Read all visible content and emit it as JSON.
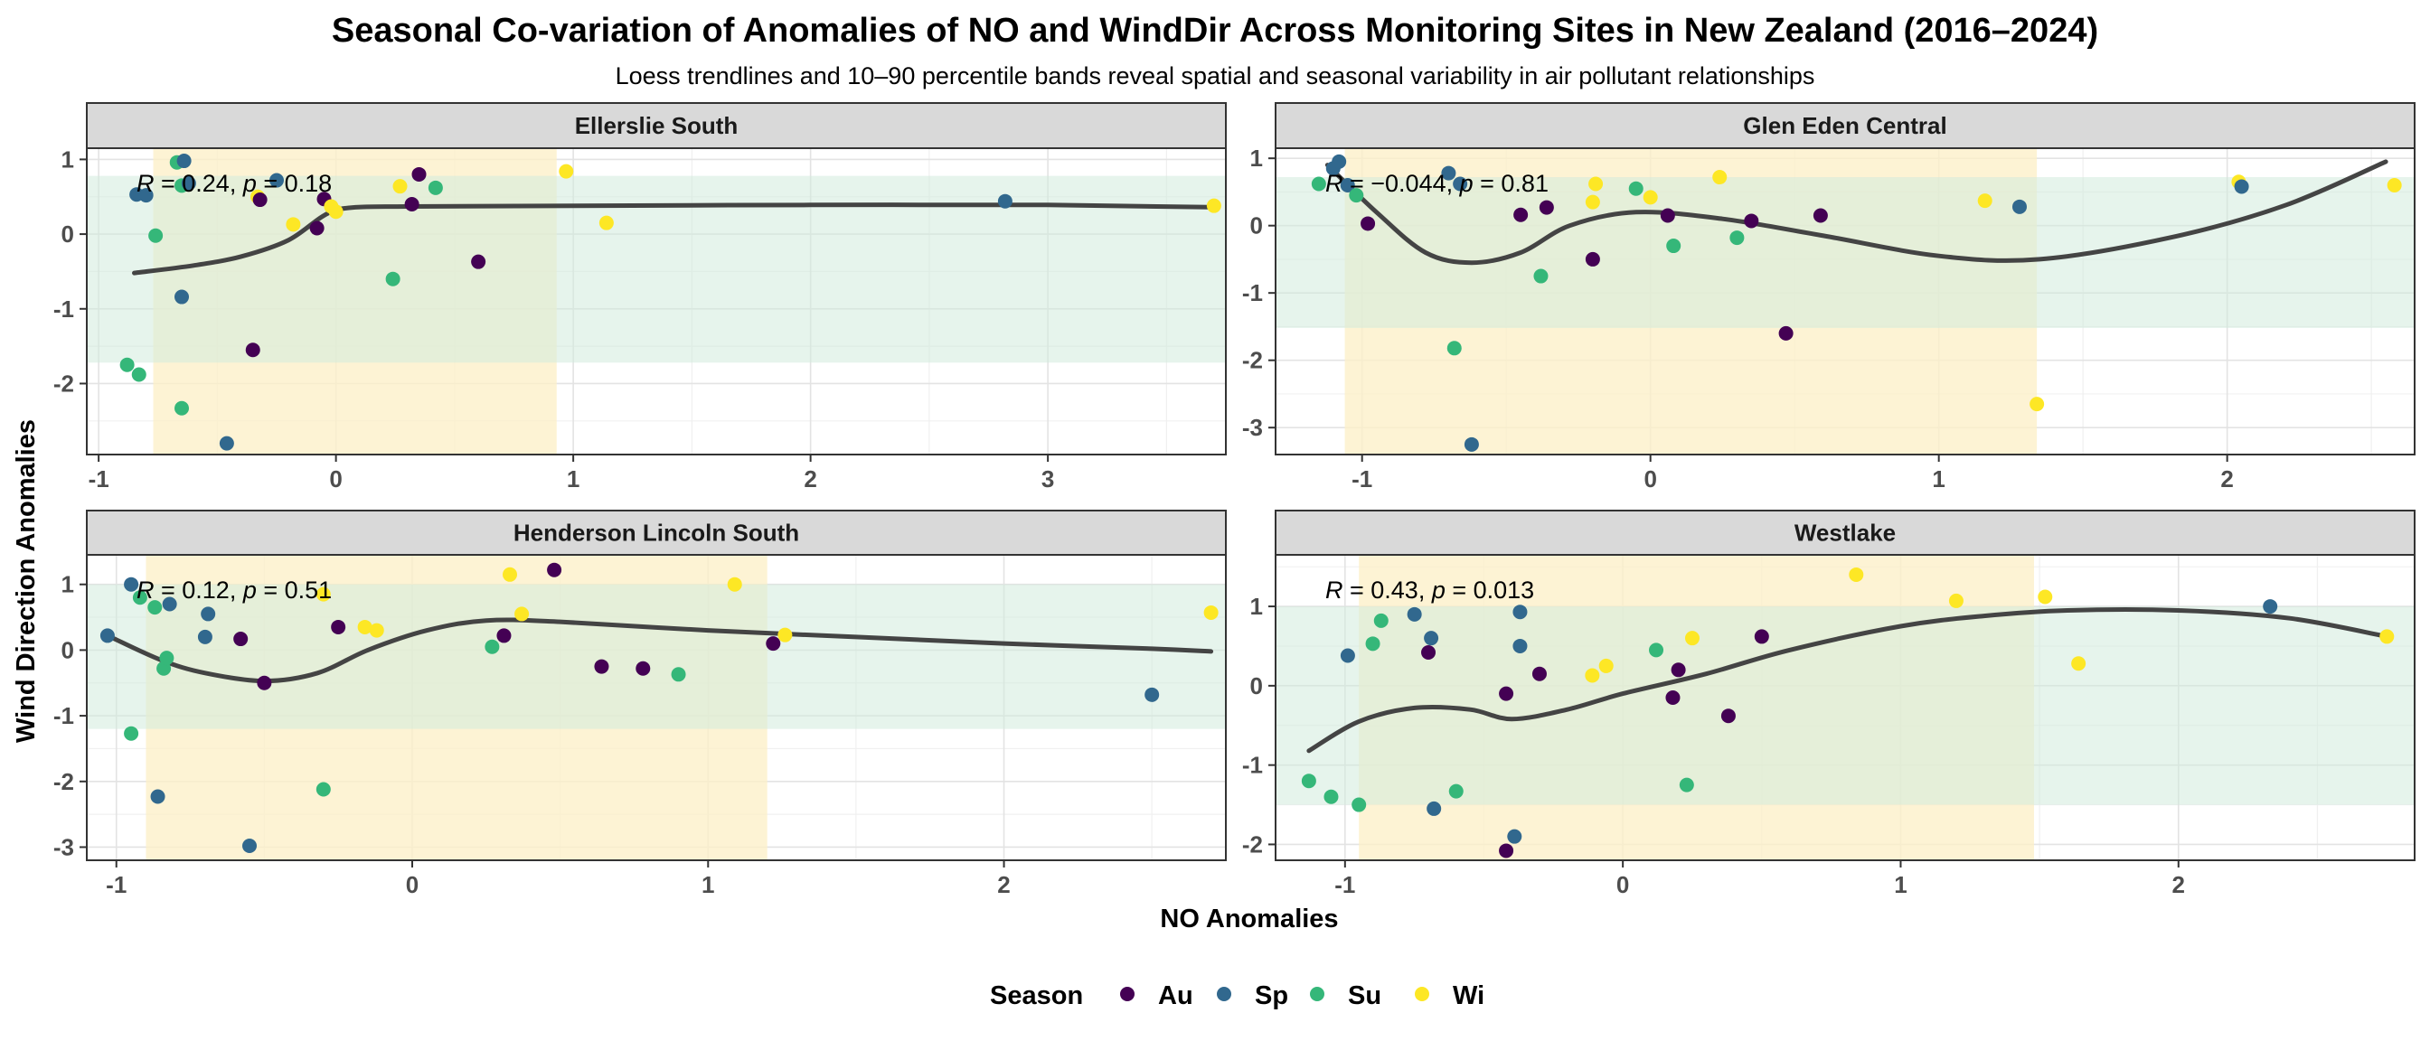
{
  "chart_data": {
    "type": "scatter",
    "title": "Seasonal Co-variation of Anomalies of NO and WindDir Across Monitoring Sites in New Zealand (2016–2024)",
    "subtitle": "Loess trendlines and 10–90 percentile bands reveal spatial and seasonal variability in air pollutant relationships",
    "xlabel": "NO Anomalies",
    "ylabel": "Wind Direction Anomalies",
    "legend": {
      "title": "Season",
      "position": "bottom",
      "entries": [
        {
          "key": "Au",
          "label": "Au",
          "color": "#440154"
        },
        {
          "key": "Sp",
          "label": "Sp",
          "color": "#31688e"
        },
        {
          "key": "Su",
          "label": "Su",
          "color": "#35b779"
        },
        {
          "key": "Wi",
          "label": "Wi",
          "color": "#fde725"
        }
      ]
    },
    "band_colors": {
      "x_band": "#fdf0c8",
      "y_band": "#d2ebdc",
      "overlap": "#e8e9c8"
    },
    "trend_color": "#444444",
    "grid": true,
    "panels": [
      {
        "name": "Ellerslie South",
        "annotation": {
          "r_label": "R",
          "r": "0.24",
          "p_label": "p",
          "p": "0.18"
        },
        "xlim": [
          -1.05,
          3.75
        ],
        "ylim": [
          -2.95,
          1.15
        ],
        "xticks": [
          -1,
          0,
          1,
          2,
          3
        ],
        "yticks": [
          -2,
          -1,
          0,
          1
        ],
        "x_band": [
          -0.77,
          0.93
        ],
        "y_band": [
          -1.72,
          0.78
        ],
        "trend": [
          [
            -0.85,
            -0.52
          ],
          [
            -0.6,
            -0.42
          ],
          [
            -0.4,
            -0.3
          ],
          [
            -0.2,
            -0.08
          ],
          [
            -0.05,
            0.25
          ],
          [
            0.05,
            0.35
          ],
          [
            0.3,
            0.37
          ],
          [
            1.0,
            0.38
          ],
          [
            2.0,
            0.39
          ],
          [
            3.0,
            0.39
          ],
          [
            3.68,
            0.36
          ]
        ],
        "points": [
          {
            "x": -0.88,
            "y": -1.75,
            "s": "Su"
          },
          {
            "x": -0.83,
            "y": -1.88,
            "s": "Su"
          },
          {
            "x": -0.84,
            "y": 0.53,
            "s": "Sp"
          },
          {
            "x": -0.8,
            "y": 0.52,
            "s": "Sp"
          },
          {
            "x": -0.76,
            "y": -0.02,
            "s": "Su"
          },
          {
            "x": -0.67,
            "y": 0.96,
            "s": "Su"
          },
          {
            "x": -0.64,
            "y": 0.98,
            "s": "Sp"
          },
          {
            "x": -0.65,
            "y": 0.65,
            "s": "Su"
          },
          {
            "x": -0.62,
            "y": 0.68,
            "s": "Sp"
          },
          {
            "x": -0.65,
            "y": -0.84,
            "s": "Sp"
          },
          {
            "x": -0.65,
            "y": -2.33,
            "s": "Su"
          },
          {
            "x": -0.46,
            "y": -2.8,
            "s": "Sp"
          },
          {
            "x": -0.35,
            "y": -1.55,
            "s": "Au"
          },
          {
            "x": -0.33,
            "y": 0.5,
            "s": "Wi"
          },
          {
            "x": -0.32,
            "y": 0.46,
            "s": "Au"
          },
          {
            "x": -0.25,
            "y": 0.72,
            "s": "Sp"
          },
          {
            "x": -0.18,
            "y": 0.13,
            "s": "Wi"
          },
          {
            "x": -0.08,
            "y": 0.08,
            "s": "Au"
          },
          {
            "x": -0.05,
            "y": 0.47,
            "s": "Au"
          },
          {
            "x": -0.02,
            "y": 0.37,
            "s": "Wi"
          },
          {
            "x": 0.0,
            "y": 0.3,
            "s": "Wi"
          },
          {
            "x": 0.24,
            "y": -0.6,
            "s": "Su"
          },
          {
            "x": 0.27,
            "y": 0.64,
            "s": "Wi"
          },
          {
            "x": 0.32,
            "y": 0.4,
            "s": "Au"
          },
          {
            "x": 0.35,
            "y": 0.8,
            "s": "Au"
          },
          {
            "x": 0.42,
            "y": 0.62,
            "s": "Su"
          },
          {
            "x": 0.6,
            "y": -0.37,
            "s": "Au"
          },
          {
            "x": 0.97,
            "y": 0.84,
            "s": "Wi"
          },
          {
            "x": 1.14,
            "y": 0.15,
            "s": "Wi"
          },
          {
            "x": 2.82,
            "y": 0.44,
            "s": "Sp"
          },
          {
            "x": 3.7,
            "y": 0.38,
            "s": "Wi"
          }
        ]
      },
      {
        "name": "Glen Eden Central",
        "annotation": {
          "r_label": "R",
          "r": "−0.044",
          "p_label": "p",
          "p": "0.81"
        },
        "xlim": [
          -1.3,
          2.65
        ],
        "ylim": [
          -3.4,
          1.15
        ],
        "xticks": [
          -1,
          0,
          1,
          2
        ],
        "yticks": [
          -3,
          -2,
          -1,
          0,
          1
        ],
        "x_band": [
          -1.06,
          1.34
        ],
        "y_band": [
          -1.52,
          0.72
        ],
        "trend": [
          [
            -1.12,
            0.9
          ],
          [
            -0.95,
            0.2
          ],
          [
            -0.78,
            -0.4
          ],
          [
            -0.62,
            -0.55
          ],
          [
            -0.45,
            -0.4
          ],
          [
            -0.28,
            0.0
          ],
          [
            -0.05,
            0.2
          ],
          [
            0.25,
            0.1
          ],
          [
            0.6,
            -0.15
          ],
          [
            1.0,
            -0.45
          ],
          [
            1.35,
            -0.5
          ],
          [
            1.8,
            -0.18
          ],
          [
            2.2,
            0.3
          ],
          [
            2.55,
            0.95
          ]
        ],
        "points": [
          {
            "x": -1.15,
            "y": 0.62,
            "s": "Su"
          },
          {
            "x": -1.1,
            "y": 0.85,
            "s": "Sp"
          },
          {
            "x": -1.08,
            "y": 0.95,
            "s": "Sp"
          },
          {
            "x": -1.05,
            "y": 0.6,
            "s": "Sp"
          },
          {
            "x": -1.02,
            "y": 0.45,
            "s": "Su"
          },
          {
            "x": -0.98,
            "y": 0.03,
            "s": "Au"
          },
          {
            "x": -0.68,
            "y": -1.82,
            "s": "Su"
          },
          {
            "x": -0.7,
            "y": 0.78,
            "s": "Sp"
          },
          {
            "x": -0.66,
            "y": 0.62,
            "s": "Sp"
          },
          {
            "x": -0.62,
            "y": -3.25,
            "s": "Sp"
          },
          {
            "x": -0.45,
            "y": 0.16,
            "s": "Au"
          },
          {
            "x": -0.38,
            "y": -0.75,
            "s": "Su"
          },
          {
            "x": -0.36,
            "y": 0.27,
            "s": "Au"
          },
          {
            "x": -0.2,
            "y": 0.35,
            "s": "Wi"
          },
          {
            "x": -0.19,
            "y": 0.62,
            "s": "Wi"
          },
          {
            "x": -0.2,
            "y": -0.5,
            "s": "Au"
          },
          {
            "x": -0.05,
            "y": 0.55,
            "s": "Su"
          },
          {
            "x": 0.0,
            "y": 0.42,
            "s": "Wi"
          },
          {
            "x": 0.06,
            "y": 0.15,
            "s": "Au"
          },
          {
            "x": 0.08,
            "y": -0.3,
            "s": "Su"
          },
          {
            "x": 0.24,
            "y": 0.72,
            "s": "Wi"
          },
          {
            "x": 0.3,
            "y": -0.18,
            "s": "Su"
          },
          {
            "x": 0.35,
            "y": 0.07,
            "s": "Au"
          },
          {
            "x": 0.47,
            "y": -1.6,
            "s": "Au"
          },
          {
            "x": 0.59,
            "y": 0.15,
            "s": "Au"
          },
          {
            "x": 1.16,
            "y": 0.37,
            "s": "Wi"
          },
          {
            "x": 1.28,
            "y": 0.28,
            "s": "Sp"
          },
          {
            "x": 1.34,
            "y": -2.65,
            "s": "Wi"
          },
          {
            "x": 2.04,
            "y": 0.65,
            "s": "Wi"
          },
          {
            "x": 2.05,
            "y": 0.58,
            "s": "Sp"
          },
          {
            "x": 2.58,
            "y": 0.6,
            "s": "Wi"
          }
        ]
      },
      {
        "name": "Henderson Lincoln South",
        "annotation": {
          "r_label": "R",
          "r": "0.12",
          "p_label": "p",
          "p": "0.51"
        },
        "xlim": [
          -1.1,
          2.75
        ],
        "ylim": [
          -3.2,
          1.45
        ],
        "xticks": [
          -1,
          0,
          1,
          2
        ],
        "yticks": [
          -3,
          -2,
          -1,
          0,
          1
        ],
        "x_band": [
          -0.9,
          1.2
        ],
        "y_band": [
          -1.2,
          1.0
        ],
        "trend": [
          [
            -1.02,
            0.2
          ],
          [
            -0.85,
            -0.15
          ],
          [
            -0.7,
            -0.35
          ],
          [
            -0.5,
            -0.47
          ],
          [
            -0.32,
            -0.35
          ],
          [
            -0.15,
            0.0
          ],
          [
            0.05,
            0.3
          ],
          [
            0.25,
            0.45
          ],
          [
            0.5,
            0.43
          ],
          [
            1.0,
            0.3
          ],
          [
            1.5,
            0.2
          ],
          [
            2.0,
            0.1
          ],
          [
            2.5,
            0.02
          ],
          [
            2.7,
            -0.02
          ]
        ],
        "points": [
          {
            "x": -1.03,
            "y": 0.22,
            "s": "Sp"
          },
          {
            "x": -0.95,
            "y": 1.0,
            "s": "Sp"
          },
          {
            "x": -0.95,
            "y": -1.27,
            "s": "Su"
          },
          {
            "x": -0.92,
            "y": 0.8,
            "s": "Su"
          },
          {
            "x": -0.87,
            "y": 0.65,
            "s": "Su"
          },
          {
            "x": -0.86,
            "y": -2.23,
            "s": "Sp"
          },
          {
            "x": -0.84,
            "y": -0.28,
            "s": "Su"
          },
          {
            "x": -0.83,
            "y": -0.12,
            "s": "Su"
          },
          {
            "x": -0.82,
            "y": 0.7,
            "s": "Sp"
          },
          {
            "x": -0.7,
            "y": 0.2,
            "s": "Sp"
          },
          {
            "x": -0.69,
            "y": 0.55,
            "s": "Sp"
          },
          {
            "x": -0.58,
            "y": 0.17,
            "s": "Au"
          },
          {
            "x": -0.55,
            "y": -2.98,
            "s": "Sp"
          },
          {
            "x": -0.5,
            "y": -0.5,
            "s": "Au"
          },
          {
            "x": -0.3,
            "y": -2.12,
            "s": "Su"
          },
          {
            "x": -0.25,
            "y": 0.35,
            "s": "Au"
          },
          {
            "x": -0.16,
            "y": 0.35,
            "s": "Wi"
          },
          {
            "x": -0.12,
            "y": 0.3,
            "s": "Wi"
          },
          {
            "x": -0.3,
            "y": 0.85,
            "s": "Wi"
          },
          {
            "x": 0.27,
            "y": 0.05,
            "s": "Su"
          },
          {
            "x": 0.31,
            "y": 0.22,
            "s": "Au"
          },
          {
            "x": 0.33,
            "y": 1.15,
            "s": "Wi"
          },
          {
            "x": 0.37,
            "y": 0.55,
            "s": "Wi"
          },
          {
            "x": 0.48,
            "y": 1.22,
            "s": "Au"
          },
          {
            "x": 0.64,
            "y": -0.25,
            "s": "Au"
          },
          {
            "x": 0.78,
            "y": -0.28,
            "s": "Au"
          },
          {
            "x": 0.9,
            "y": -0.37,
            "s": "Su"
          },
          {
            "x": 1.09,
            "y": 1.0,
            "s": "Wi"
          },
          {
            "x": 1.22,
            "y": 0.1,
            "s": "Au"
          },
          {
            "x": 1.26,
            "y": 0.23,
            "s": "Wi"
          },
          {
            "x": 2.5,
            "y": -0.68,
            "s": "Sp"
          },
          {
            "x": 2.7,
            "y": 0.57,
            "s": "Wi"
          }
        ]
      },
      {
        "name": "Westlake",
        "annotation": {
          "r_label": "R",
          "r": "0.43",
          "p_label": "p",
          "p": "0.013"
        },
        "xlim": [
          -1.25,
          2.85
        ],
        "ylim": [
          -2.2,
          1.65
        ],
        "xticks": [
          -1,
          0,
          1,
          2
        ],
        "yticks": [
          -2,
          -1,
          0,
          1
        ],
        "x_band": [
          -0.95,
          1.48
        ],
        "y_band": [
          -1.5,
          1.0
        ],
        "trend": [
          [
            -1.13,
            -0.82
          ],
          [
            -0.95,
            -0.45
          ],
          [
            -0.75,
            -0.28
          ],
          [
            -0.55,
            -0.3
          ],
          [
            -0.4,
            -0.42
          ],
          [
            -0.2,
            -0.3
          ],
          [
            0.0,
            -0.1
          ],
          [
            0.3,
            0.15
          ],
          [
            0.6,
            0.45
          ],
          [
            1.0,
            0.75
          ],
          [
            1.3,
            0.88
          ],
          [
            1.6,
            0.95
          ],
          [
            2.0,
            0.95
          ],
          [
            2.4,
            0.85
          ],
          [
            2.75,
            0.62
          ]
        ],
        "points": [
          {
            "x": -1.13,
            "y": -1.2,
            "s": "Su"
          },
          {
            "x": -1.05,
            "y": -1.4,
            "s": "Su"
          },
          {
            "x": -0.99,
            "y": 0.38,
            "s": "Sp"
          },
          {
            "x": -0.95,
            "y": -1.5,
            "s": "Su"
          },
          {
            "x": -0.9,
            "y": 0.53,
            "s": "Su"
          },
          {
            "x": -0.87,
            "y": 0.82,
            "s": "Su"
          },
          {
            "x": -0.75,
            "y": 0.9,
            "s": "Sp"
          },
          {
            "x": -0.7,
            "y": 0.42,
            "s": "Au"
          },
          {
            "x": -0.69,
            "y": 0.6,
            "s": "Sp"
          },
          {
            "x": -0.68,
            "y": -1.55,
            "s": "Sp"
          },
          {
            "x": -0.6,
            "y": -1.33,
            "s": "Su"
          },
          {
            "x": -0.42,
            "y": -0.1,
            "s": "Au"
          },
          {
            "x": -0.42,
            "y": -2.08,
            "s": "Au"
          },
          {
            "x": -0.39,
            "y": -1.9,
            "s": "Sp"
          },
          {
            "x": -0.37,
            "y": 0.93,
            "s": "Sp"
          },
          {
            "x": -0.37,
            "y": 0.5,
            "s": "Sp"
          },
          {
            "x": -0.3,
            "y": 0.15,
            "s": "Au"
          },
          {
            "x": -0.11,
            "y": 0.13,
            "s": "Wi"
          },
          {
            "x": -0.06,
            "y": 0.25,
            "s": "Wi"
          },
          {
            "x": 0.12,
            "y": 0.45,
            "s": "Su"
          },
          {
            "x": 0.18,
            "y": -0.15,
            "s": "Au"
          },
          {
            "x": 0.2,
            "y": 0.2,
            "s": "Au"
          },
          {
            "x": 0.23,
            "y": -1.25,
            "s": "Su"
          },
          {
            "x": 0.25,
            "y": 0.6,
            "s": "Wi"
          },
          {
            "x": 0.38,
            "y": -0.38,
            "s": "Au"
          },
          {
            "x": 0.5,
            "y": 0.62,
            "s": "Au"
          },
          {
            "x": 0.84,
            "y": 1.4,
            "s": "Wi"
          },
          {
            "x": 1.2,
            "y": 1.07,
            "s": "Wi"
          },
          {
            "x": 1.52,
            "y": 1.12,
            "s": "Wi"
          },
          {
            "x": 1.64,
            "y": 0.28,
            "s": "Wi"
          },
          {
            "x": 2.33,
            "y": 1.0,
            "s": "Sp"
          },
          {
            "x": 2.75,
            "y": 0.62,
            "s": "Wi"
          }
        ]
      }
    ]
  }
}
